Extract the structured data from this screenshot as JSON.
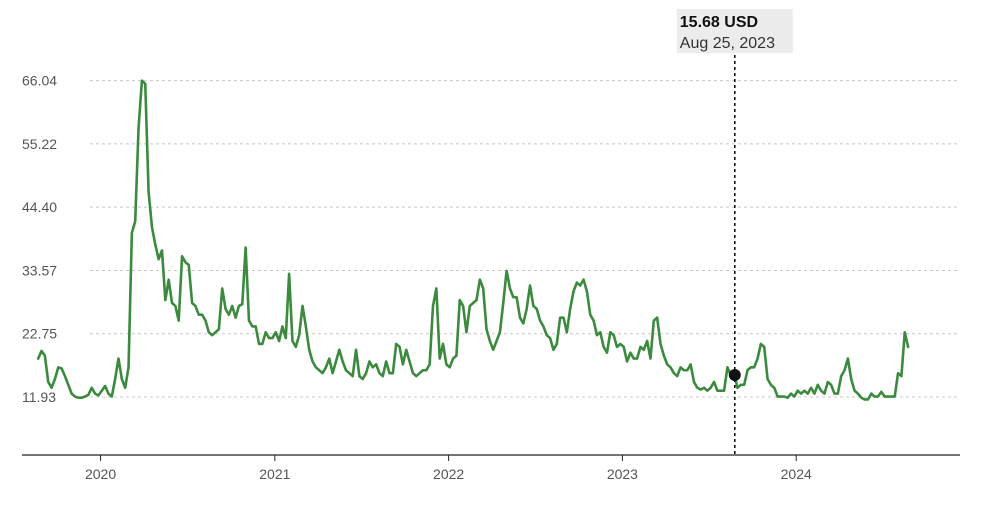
{
  "chart_data": {
    "type": "line",
    "title": "",
    "xlabel": "",
    "ylabel": "",
    "unit": "USD",
    "x_range": [
      "2019-08-23",
      "2024-08-23"
    ],
    "xlim": [
      "2019-07-20",
      "2024-12-10"
    ],
    "ylim": [
      2.0,
      73.0
    ],
    "y_ticks": [
      "11.93",
      "22.75",
      "33.57",
      "44.40",
      "55.22",
      "66.04"
    ],
    "x_ticks": [
      "2020",
      "2021",
      "2022",
      "2023",
      "2024"
    ],
    "grid": true,
    "legend": "none",
    "line_color": "#3b8a3e",
    "series": [
      {
        "values": [
          18.5,
          19.8,
          19.0,
          14.5,
          13.5,
          15.0,
          17.0,
          16.8,
          15.5,
          14.0,
          12.5,
          12.0,
          11.8,
          11.8,
          12.0,
          12.3,
          13.5,
          12.5,
          12.2,
          13.0,
          13.8,
          12.5,
          12.0,
          15.0,
          18.5,
          15.0,
          13.5,
          17.0,
          40.0,
          42.0,
          58.0,
          66.04,
          65.5,
          47.0,
          41.0,
          38.0,
          35.5,
          37.0,
          28.5,
          32.0,
          28.0,
          27.5,
          25.0,
          36.0,
          35.0,
          34.5,
          28.0,
          27.5,
          26.0,
          26.0,
          25.0,
          23.0,
          22.5,
          23.0,
          23.5,
          30.5,
          27.0,
          26.0,
          27.5,
          25.5,
          27.5,
          27.8,
          37.5,
          25.0,
          24.0,
          24.0,
          21.0,
          21.0,
          23.0,
          22.0,
          22.0,
          23.0,
          21.5,
          24.0,
          22.0,
          33.0,
          21.5,
          20.5,
          22.5,
          27.5,
          24.0,
          20.0,
          18.0,
          17.0,
          16.5,
          16.0,
          17.0,
          18.5,
          16.0,
          18.0,
          20.0,
          18.0,
          16.5,
          16.0,
          15.5,
          20.0,
          15.5,
          15.0,
          16.0,
          18.0,
          17.0,
          17.5,
          16.0,
          15.5,
          18.0,
          16.0,
          16.0,
          21.0,
          20.5,
          17.5,
          20.0,
          18.0,
          16.0,
          15.5,
          16.0,
          16.5,
          16.5,
          17.5,
          27.5,
          30.5,
          18.5,
          21.0,
          17.5,
          17.0,
          18.5,
          19.0,
          28.5,
          27.5,
          23.0,
          27.5,
          28.0,
          28.5,
          32.0,
          30.5,
          23.5,
          21.5,
          20.0,
          21.5,
          23.0,
          28.0,
          33.5,
          30.5,
          29.0,
          29.0,
          25.5,
          24.5,
          27.0,
          31.0,
          27.5,
          27.0,
          25.0,
          24.0,
          22.5,
          22.0,
          20.0,
          21.0,
          25.5,
          25.5,
          23.0,
          27.0,
          30.0,
          31.5,
          31.0,
          32.0,
          30.0,
          26.0,
          25.0,
          22.5,
          23.0,
          20.5,
          19.5,
          23.0,
          22.5,
          20.5,
          21.0,
          20.5,
          18.0,
          19.5,
          18.5,
          18.5,
          20.5,
          20.0,
          21.5,
          18.5,
          25.0,
          25.5,
          21.0,
          19.0,
          17.5,
          17.0,
          16.0,
          15.5,
          17.0,
          16.5,
          16.5,
          17.5,
          14.5,
          13.5,
          13.2,
          13.5,
          13.0,
          13.5,
          14.5,
          13.0,
          13.0,
          13.0,
          17.0,
          15.68,
          16.0,
          13.5,
          14.0,
          14.0,
          16.5,
          17.0,
          17.0,
          18.5,
          21.0,
          20.5,
          15.0,
          14.0,
          13.5,
          12.0,
          12.0,
          12.0,
          11.8,
          12.5,
          12.0,
          13.0,
          12.5,
          13.0,
          12.5,
          13.5,
          12.5,
          14.0,
          13.0,
          12.5,
          14.5,
          14.0,
          12.5,
          12.5,
          15.5,
          16.5,
          18.5,
          15.0,
          13.0,
          12.5,
          11.8,
          11.5,
          11.5,
          12.5,
          12.0,
          12.0,
          12.8,
          12.0,
          12.0,
          12.0,
          12.0,
          16.0,
          15.5,
          23.0,
          20.5
        ]
      }
    ],
    "highlight": {
      "date_label": "Aug 25, 2023",
      "value": 15.68,
      "value_label": "15.68 USD",
      "x": "2023-08-25"
    }
  }
}
